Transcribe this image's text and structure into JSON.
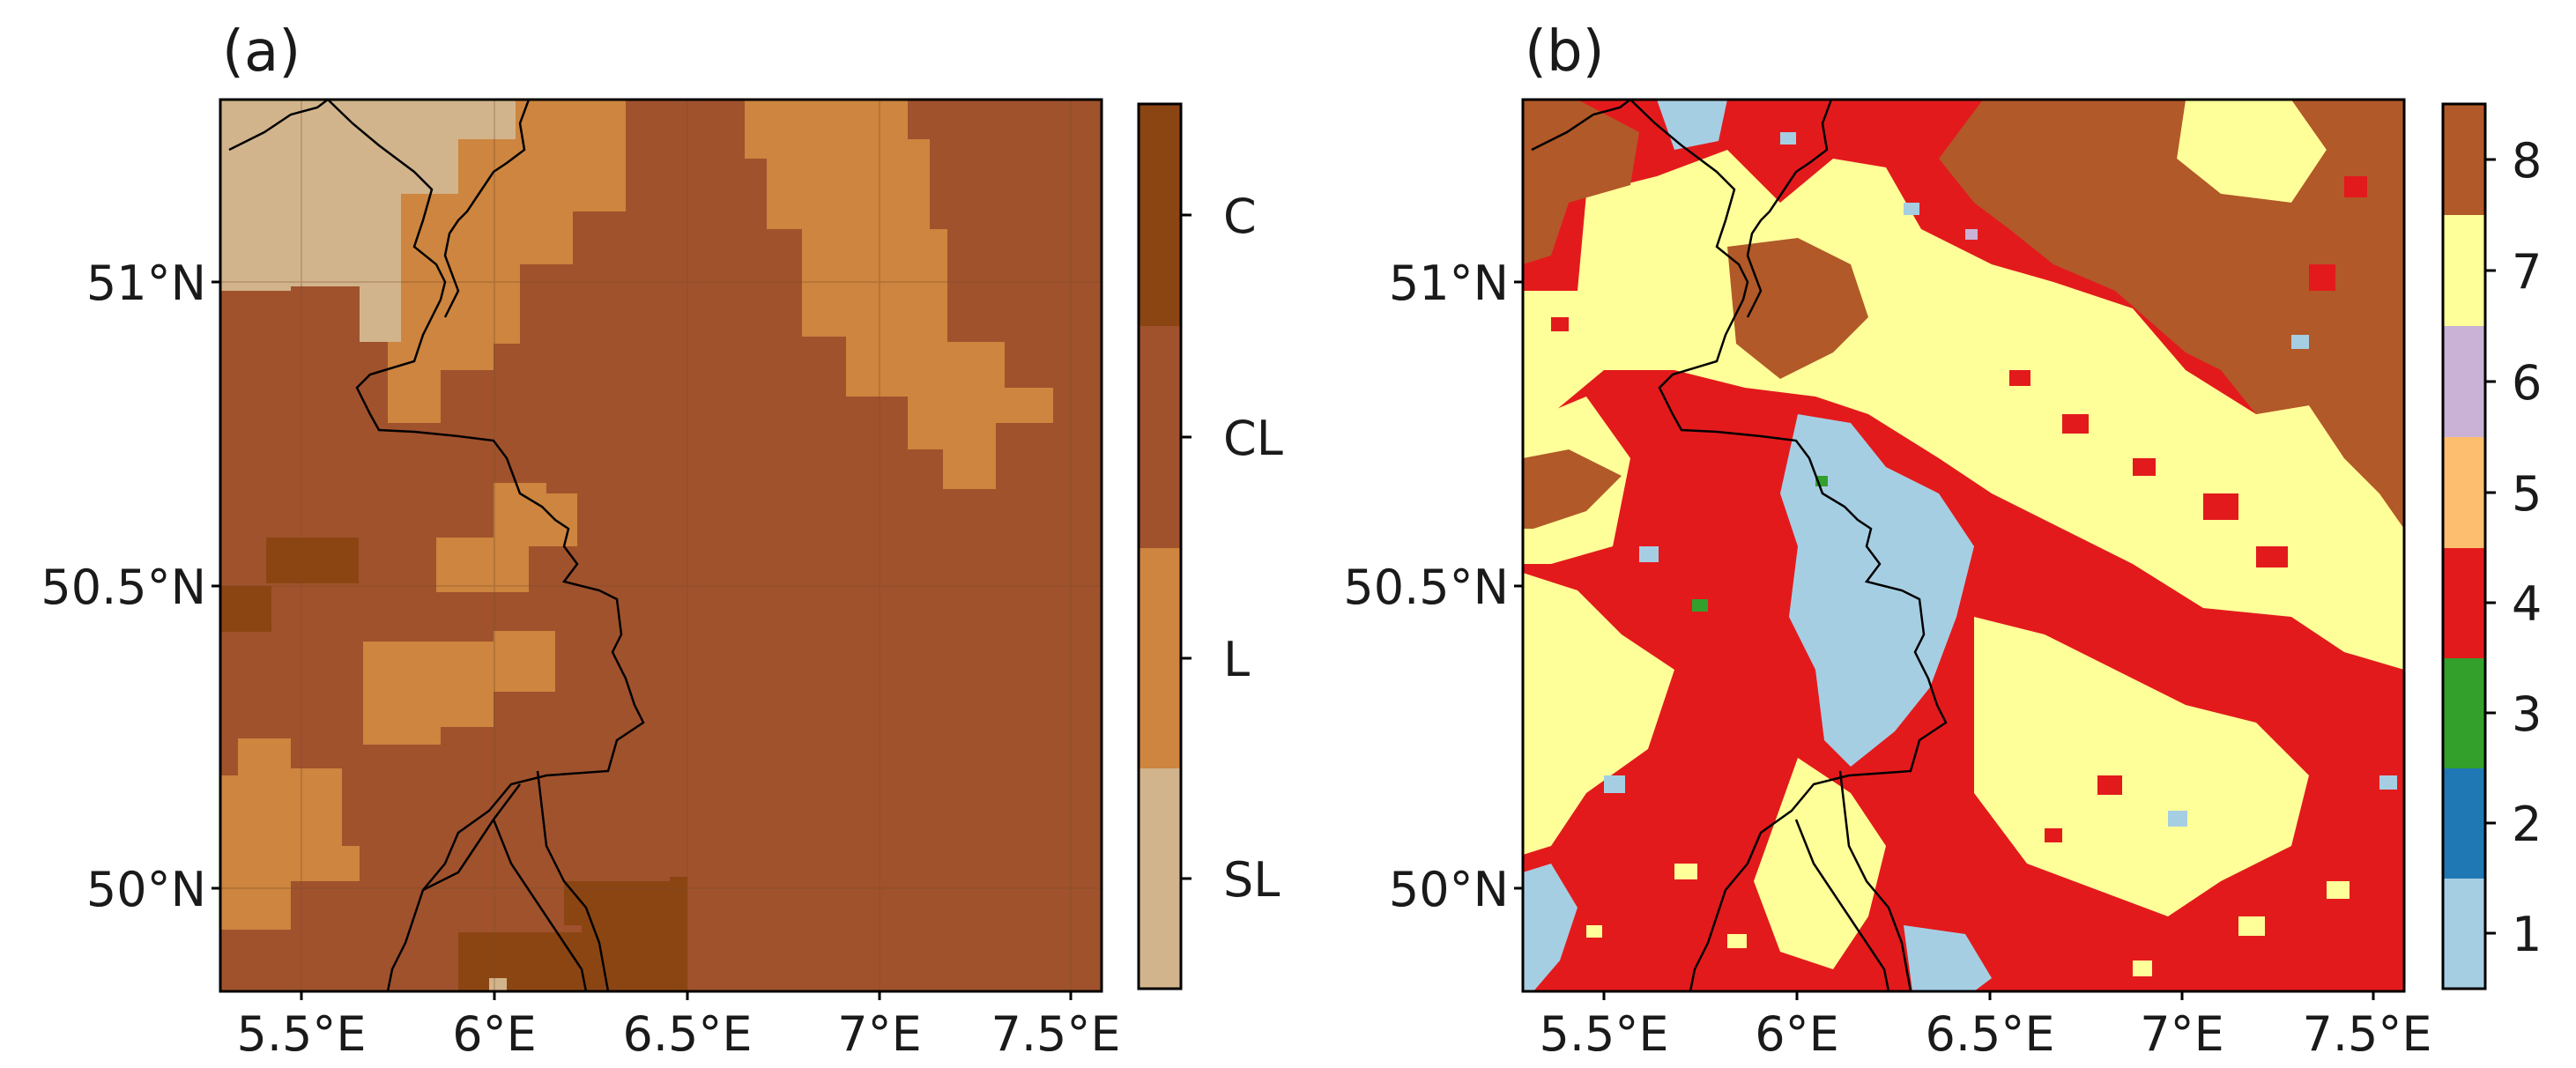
{
  "panel_a": {
    "label": "(a)",
    "y_ticks": [
      "51°N",
      "50.5°N",
      "50°N"
    ],
    "x_ticks": [
      "5.5°E",
      "6°E",
      "6.5°E",
      "7°E",
      "7.5°E"
    ],
    "colorbar": {
      "classes": [
        {
          "label": "SL",
          "color": "#d2b48c"
        },
        {
          "label": "L",
          "color": "#cd853f"
        },
        {
          "label": "CL",
          "color": "#a0522d"
        },
        {
          "label": "C",
          "color": "#8b4513"
        }
      ]
    }
  },
  "panel_b": {
    "label": "(b)",
    "y_ticks": [
      "51°N",
      "50.5°N",
      "50°N"
    ],
    "x_ticks": [
      "5.5°E",
      "6°E",
      "6.5°E",
      "7°E",
      "7.5°E"
    ],
    "colorbar": {
      "classes": [
        {
          "label": "1",
          "color": "#a6cee3"
        },
        {
          "label": "2",
          "color": "#1f78b4"
        },
        {
          "label": "3",
          "color": "#33a02c"
        },
        {
          "label": "4",
          "color": "#e31a1c"
        },
        {
          "label": "5",
          "color": "#fdbf6f"
        },
        {
          "label": "6",
          "color": "#cab2d6"
        },
        {
          "label": "7",
          "color": "#ffff99"
        },
        {
          "label": "8",
          "color": "#b15928"
        }
      ]
    }
  }
}
